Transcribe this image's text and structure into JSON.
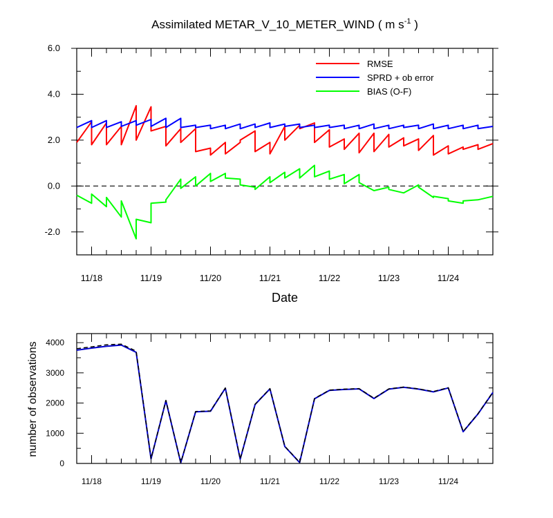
{
  "chart_data": [
    {
      "type": "line",
      "title_main": "Assimilated METAR_V_10_METER_WIND",
      "title_units_prefix": "( m s",
      "title_units_exp": "-1",
      "title_units_suffix": " )",
      "xlabel": "Date",
      "ylabel": "",
      "xlim": [
        0,
        7.0
      ],
      "ylim": [
        -3,
        6
      ],
      "y_ticks": [
        6,
        4,
        2,
        0,
        -2
      ],
      "y_tick_labels": [
        "6.0",
        "4.0",
        "2.0",
        "0.0",
        "-2.0"
      ],
      "x_ticks": [
        0.25,
        1.25,
        2.25,
        3.25,
        4.25,
        5.25,
        6.25
      ],
      "x_tick_labels": [
        "11/18",
        "11/19",
        "11/20",
        "11/21",
        "11/22",
        "11/23",
        "11/24"
      ],
      "legend_position": "top-right",
      "zero_line": "dashed",
      "series": [
        {
          "name": "RMSE",
          "color": "#ff0000",
          "points": [
            [
              0,
              1.9
            ],
            [
              0.25,
              2.8
            ],
            [
              0.25,
              1.8
            ],
            [
              0.5,
              2.75
            ],
            [
              0.5,
              1.8
            ],
            [
              0.75,
              2.6
            ],
            [
              0.75,
              1.8
            ],
            [
              1.0,
              3.5
            ],
            [
              1.0,
              2.0
            ],
            [
              1.25,
              3.45
            ],
            [
              1.25,
              2.4
            ],
            [
              1.5,
              2.6
            ],
            [
              1.5,
              1.75
            ],
            [
              1.75,
              2.5
            ],
            [
              1.75,
              1.9
            ],
            [
              2.0,
              2.5
            ],
            [
              2.0,
              1.5
            ],
            [
              2.25,
              1.65
            ],
            [
              2.25,
              1.35
            ],
            [
              2.5,
              1.9
            ],
            [
              2.5,
              1.4
            ],
            [
              2.75,
              1.9
            ],
            [
              2.75,
              2.0
            ],
            [
              3.0,
              2.4
            ],
            [
              3.0,
              1.5
            ],
            [
              3.25,
              1.9
            ],
            [
              3.25,
              1.4
            ],
            [
              3.5,
              2.6
            ],
            [
              3.5,
              2.0
            ],
            [
              3.75,
              2.65
            ],
            [
              3.75,
              2.5
            ],
            [
              4.0,
              2.75
            ],
            [
              4.0,
              1.9
            ],
            [
              4.25,
              2.45
            ],
            [
              4.25,
              1.7
            ],
            [
              4.5,
              2.05
            ],
            [
              4.5,
              1.6
            ],
            [
              4.75,
              2.3
            ],
            [
              4.75,
              1.45
            ],
            [
              5.0,
              2.3
            ],
            [
              5.0,
              1.5
            ],
            [
              5.25,
              2.25
            ],
            [
              5.25,
              1.7
            ],
            [
              5.5,
              2.1
            ],
            [
              5.5,
              1.75
            ],
            [
              5.75,
              2.05
            ],
            [
              5.75,
              1.55
            ],
            [
              6.0,
              2.2
            ],
            [
              6.0,
              1.35
            ],
            [
              6.25,
              1.75
            ],
            [
              6.25,
              1.4
            ],
            [
              6.5,
              1.7
            ],
            [
              6.5,
              1.6
            ],
            [
              6.75,
              1.8
            ],
            [
              6.75,
              1.6
            ],
            [
              7.0,
              1.85
            ]
          ]
        },
        {
          "name": "SPRD + ob error",
          "color": "#0000ff",
          "points": [
            [
              0,
              2.55
            ],
            [
              0.25,
              2.85
            ],
            [
              0.25,
              2.55
            ],
            [
              0.5,
              2.85
            ],
            [
              0.5,
              2.55
            ],
            [
              0.75,
              2.8
            ],
            [
              0.75,
              2.6
            ],
            [
              1.0,
              2.85
            ],
            [
              1.0,
              2.65
            ],
            [
              1.25,
              2.9
            ],
            [
              1.25,
              2.6
            ],
            [
              1.5,
              2.95
            ],
            [
              1.5,
              2.55
            ],
            [
              1.75,
              2.95
            ],
            [
              1.75,
              2.55
            ],
            [
              2.0,
              2.65
            ],
            [
              2.0,
              2.55
            ],
            [
              2.25,
              2.65
            ],
            [
              2.25,
              2.5
            ],
            [
              2.5,
              2.65
            ],
            [
              2.5,
              2.5
            ],
            [
              2.75,
              2.7
            ],
            [
              2.75,
              2.5
            ],
            [
              3.0,
              2.7
            ],
            [
              3.0,
              2.55
            ],
            [
              3.25,
              2.75
            ],
            [
              3.25,
              2.55
            ],
            [
              3.5,
              2.7
            ],
            [
              3.5,
              2.6
            ],
            [
              3.75,
              2.7
            ],
            [
              3.75,
              2.55
            ],
            [
              4.0,
              2.65
            ],
            [
              4.0,
              2.55
            ],
            [
              4.25,
              2.65
            ],
            [
              4.25,
              2.55
            ],
            [
              4.5,
              2.65
            ],
            [
              4.5,
              2.5
            ],
            [
              4.75,
              2.65
            ],
            [
              4.75,
              2.5
            ],
            [
              5.0,
              2.7
            ],
            [
              5.0,
              2.5
            ],
            [
              5.25,
              2.65
            ],
            [
              5.25,
              2.5
            ],
            [
              5.5,
              2.65
            ],
            [
              5.5,
              2.55
            ],
            [
              5.75,
              2.65
            ],
            [
              5.75,
              2.5
            ],
            [
              6.0,
              2.7
            ],
            [
              6.0,
              2.5
            ],
            [
              6.25,
              2.65
            ],
            [
              6.25,
              2.5
            ],
            [
              6.5,
              2.65
            ],
            [
              6.5,
              2.5
            ],
            [
              6.75,
              2.65
            ],
            [
              6.75,
              2.5
            ],
            [
              7.0,
              2.6
            ]
          ]
        },
        {
          "name": "BIAS (O-F)",
          "color": "#00ff00",
          "points": [
            [
              0,
              -0.4
            ],
            [
              0.25,
              -0.75
            ],
            [
              0.25,
              -0.35
            ],
            [
              0.5,
              -0.9
            ],
            [
              0.5,
              -0.5
            ],
            [
              0.75,
              -1.35
            ],
            [
              0.75,
              -0.65
            ],
            [
              1.0,
              -2.3
            ],
            [
              1.0,
              -1.45
            ],
            [
              1.25,
              -1.6
            ],
            [
              1.25,
              -0.75
            ],
            [
              1.5,
              -0.7
            ],
            [
              1.5,
              -0.6
            ],
            [
              1.75,
              0.3
            ],
            [
              1.75,
              -0.1
            ],
            [
              2.0,
              0.4
            ],
            [
              2.0,
              0.0
            ],
            [
              2.25,
              0.55
            ],
            [
              2.25,
              0.2
            ],
            [
              2.5,
              0.55
            ],
            [
              2.5,
              0.35
            ],
            [
              2.75,
              0.3
            ],
            [
              2.75,
              0.05
            ],
            [
              3.0,
              -0.05
            ],
            [
              3.0,
              -0.15
            ],
            [
              3.25,
              0.4
            ],
            [
              3.25,
              0.15
            ],
            [
              3.5,
              0.6
            ],
            [
              3.5,
              0.35
            ],
            [
              3.75,
              0.75
            ],
            [
              3.75,
              0.35
            ],
            [
              4.0,
              0.9
            ],
            [
              4.0,
              0.4
            ],
            [
              4.25,
              0.65
            ],
            [
              4.25,
              0.3
            ],
            [
              4.5,
              0.5
            ],
            [
              4.5,
              0.1
            ],
            [
              4.75,
              0.5
            ],
            [
              4.75,
              0.15
            ],
            [
              5.0,
              -0.2
            ],
            [
              5.0,
              -0.2
            ],
            [
              5.25,
              -0.05
            ],
            [
              5.25,
              -0.15
            ],
            [
              5.5,
              -0.3
            ],
            [
              5.5,
              -0.3
            ],
            [
              5.75,
              0.05
            ],
            [
              5.75,
              -0.05
            ],
            [
              6.0,
              -0.5
            ],
            [
              6.0,
              -0.45
            ],
            [
              6.25,
              -0.55
            ],
            [
              6.25,
              -0.65
            ],
            [
              6.5,
              -0.75
            ],
            [
              6.5,
              -0.65
            ],
            [
              6.75,
              -0.6
            ],
            [
              7.0,
              -0.45
            ]
          ]
        }
      ]
    },
    {
      "type": "line",
      "xlabel": "",
      "ylabel": "number of observations",
      "xlim": [
        0,
        7.0
      ],
      "ylim": [
        0,
        4300
      ],
      "y_ticks": [
        0,
        1000,
        2000,
        3000,
        4000
      ],
      "y_tick_labels": [
        "0",
        "1000",
        "2000",
        "3000",
        "4000"
      ],
      "x_ticks": [
        0.25,
        1.25,
        2.25,
        3.25,
        4.25,
        5.25,
        6.25
      ],
      "x_tick_labels": [
        "11/18",
        "11/19",
        "11/20",
        "11/21",
        "11/22",
        "11/23",
        "11/24"
      ],
      "series": [
        {
          "color": "#0000cd",
          "style": "solid",
          "points": [
            [
              0,
              3750
            ],
            [
              0.25,
              3820
            ],
            [
              0.5,
              3880
            ],
            [
              0.75,
              3920
            ],
            [
              1.0,
              3680
            ],
            [
              1.25,
              150
            ],
            [
              1.5,
              2080
            ],
            [
              1.75,
              20
            ],
            [
              2.0,
              1710
            ],
            [
              2.25,
              1730
            ],
            [
              2.5,
              2490
            ],
            [
              2.75,
              140
            ],
            [
              3.0,
              1950
            ],
            [
              3.25,
              2470
            ],
            [
              3.5,
              560
            ],
            [
              3.75,
              30
            ],
            [
              4.0,
              2140
            ],
            [
              4.25,
              2420
            ],
            [
              4.5,
              2450
            ],
            [
              4.75,
              2470
            ],
            [
              5.0,
              2150
            ],
            [
              5.25,
              2460
            ],
            [
              5.5,
              2520
            ],
            [
              5.75,
              2460
            ],
            [
              6.0,
              2370
            ],
            [
              6.25,
              2500
            ],
            [
              6.5,
              1050
            ],
            [
              6.75,
              1640
            ],
            [
              7.0,
              2350
            ]
          ]
        },
        {
          "color": "#000000",
          "style": "dashed",
          "points": [
            [
              0,
              3800
            ],
            [
              0.25,
              3860
            ],
            [
              0.5,
              3930
            ],
            [
              0.75,
              3950
            ],
            [
              1.0,
              3720
            ],
            [
              1.25,
              160
            ],
            [
              1.5,
              2090
            ],
            [
              1.75,
              25
            ],
            [
              2.0,
              1720
            ],
            [
              2.25,
              1740
            ],
            [
              2.5,
              2500
            ],
            [
              2.75,
              150
            ],
            [
              3.0,
              1960
            ],
            [
              3.25,
              2480
            ],
            [
              3.5,
              570
            ],
            [
              3.75,
              35
            ],
            [
              4.0,
              2150
            ],
            [
              4.25,
              2430
            ],
            [
              4.5,
              2460
            ],
            [
              4.75,
              2480
            ],
            [
              5.0,
              2160
            ],
            [
              5.25,
              2470
            ],
            [
              5.5,
              2530
            ],
            [
              5.75,
              2470
            ],
            [
              6.0,
              2380
            ],
            [
              6.25,
              2510
            ],
            [
              6.5,
              1060
            ],
            [
              6.75,
              1650
            ],
            [
              7.0,
              2360
            ]
          ]
        }
      ]
    }
  ]
}
